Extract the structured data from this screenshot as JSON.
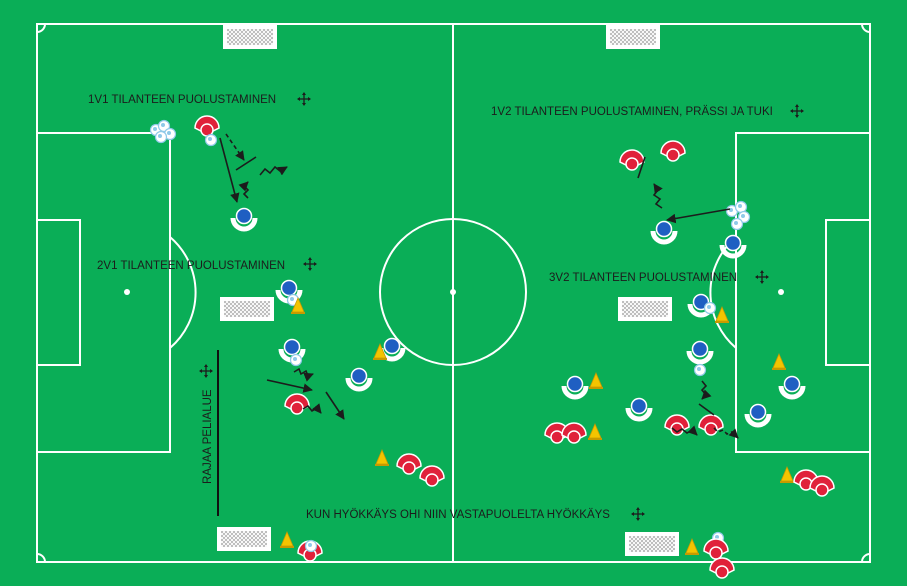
{
  "drills": {
    "d1": "1V1  TILANTEEN PUOLUSTAMINEN",
    "d2": "1V2 TILANTEEN PUOLUSTAMINEN, PRÄSSI JA TUKI",
    "d3": "2V1 TILANTEEN PUOLUSTAMINEN",
    "d4": "3V2 TILANTEEN PUOLUSTAMINEN",
    "d5": "KUN HYÖKKÄYS OHI NIIN VASTAPUOLELTA HYÖKKÄYS"
  },
  "side_label": "RAJAA PELIALUE",
  "icons": {
    "move_handle": "move-handle-icon",
    "player_blue": "player-blue-icon",
    "player_red": "player-red-icon",
    "cone": "cone-icon",
    "ball": "ball-icon",
    "goal": "goal-icon"
  },
  "colors": {
    "pitch": "#0aae57",
    "lines": "#ffffff",
    "blue_team": "#1f5fc2",
    "red_team": "#e0213a",
    "cone": "#f4c400",
    "arrows": "#1c1c1c"
  }
}
